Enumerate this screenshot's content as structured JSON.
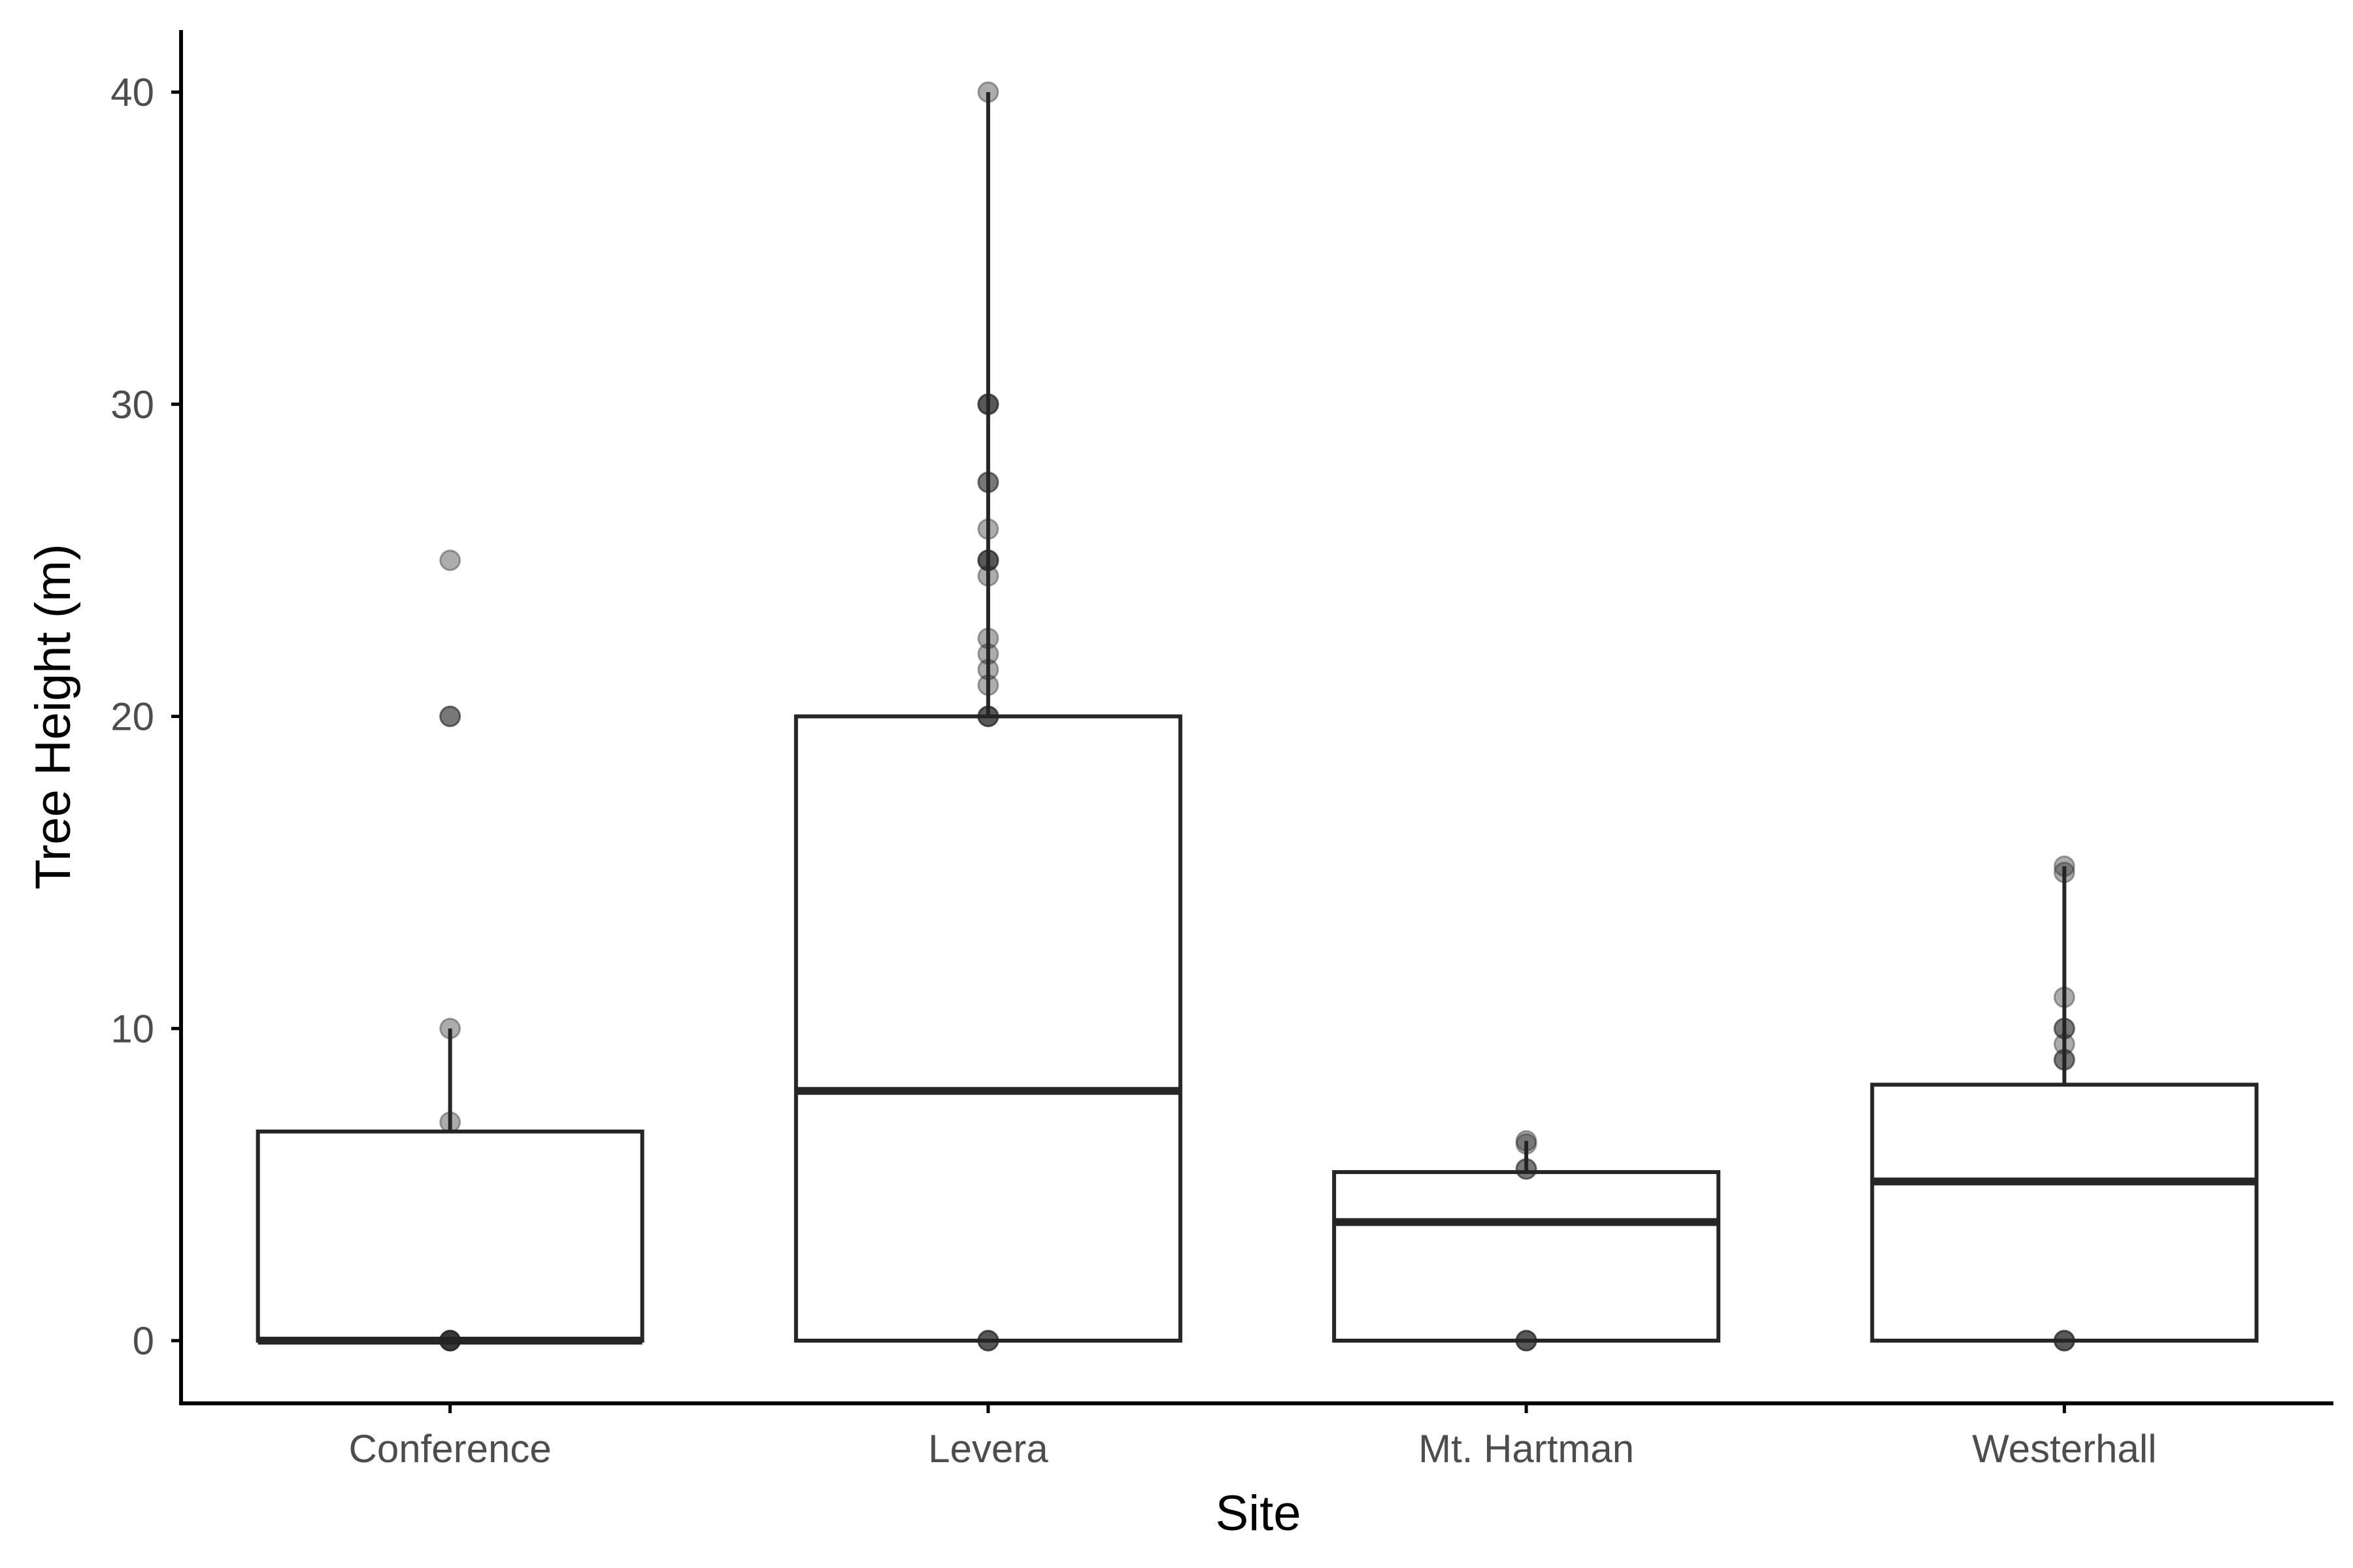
{
  "chart_data": {
    "type": "boxplot",
    "xlabel": "Site",
    "ylabel": "Tree Height (m)",
    "ylim": [
      -2,
      42
    ],
    "y_ticks": [
      0,
      10,
      20,
      30,
      40
    ],
    "grid": false,
    "legend": "none",
    "categories": [
      "Conference",
      "Levera",
      "Mt. Hartman",
      "Westerhall"
    ],
    "boxes": [
      {
        "category": "Conference",
        "min": 0,
        "q1": 0,
        "median": 0,
        "q3": 6.7,
        "max": 10
      },
      {
        "category": "Levera",
        "min": 0,
        "q1": 0,
        "median": 8,
        "q3": 20,
        "max": 40
      },
      {
        "category": "Mt. Hartman",
        "min": 0,
        "q1": 0,
        "median": 3.8,
        "q3": 5.4,
        "max": 6.4
      },
      {
        "category": "Westerhall",
        "min": 0,
        "q1": 0,
        "median": 5.1,
        "q3": 8.2,
        "max": 15.2
      }
    ],
    "points": [
      {
        "category": "Conference",
        "values": [
          0,
          0,
          0,
          0,
          0,
          7,
          10,
          20,
          20,
          25
        ]
      },
      {
        "category": "Levera",
        "values": [
          0,
          0,
          0,
          20,
          20,
          20,
          21,
          21.5,
          22,
          22.5,
          24.5,
          25,
          25,
          25,
          26,
          27.5,
          27.5,
          30,
          30,
          30,
          40
        ]
      },
      {
        "category": "Mt. Hartman",
        "values": [
          0,
          0,
          0,
          5.5,
          5.5,
          6.3,
          6.4
        ]
      },
      {
        "category": "Westerhall",
        "values": [
          0,
          0,
          0,
          9,
          9,
          9.5,
          10,
          10,
          11,
          15,
          15.2
        ]
      }
    ],
    "colors": {
      "box_stroke": "#262626",
      "box_fill": "#ffffff",
      "point": "#262626",
      "axis": "#000000",
      "tick_label": "#4d4d4d"
    }
  }
}
